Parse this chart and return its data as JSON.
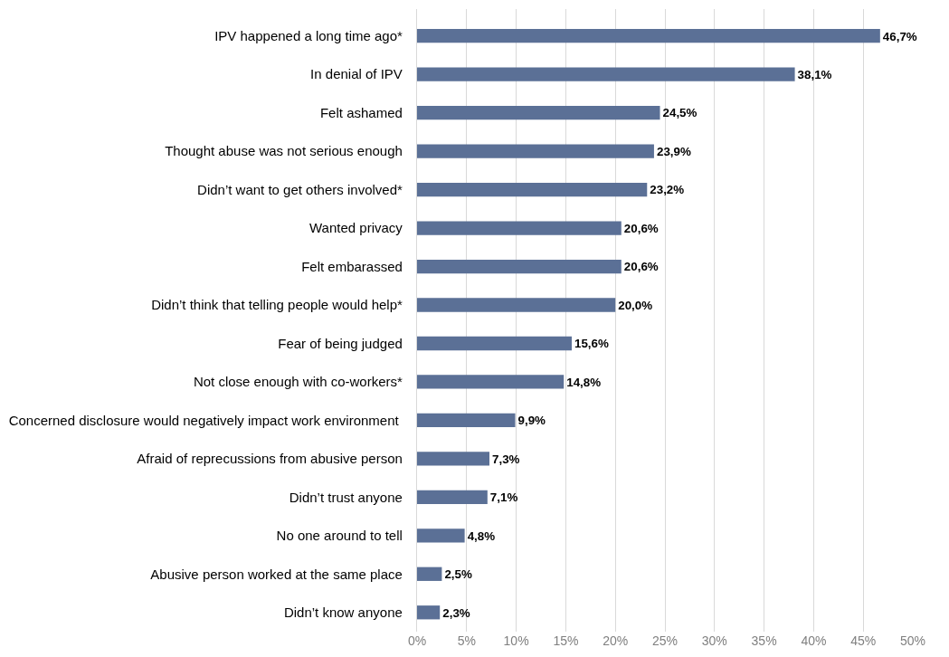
{
  "chart_data": {
    "type": "bar",
    "orientation": "horizontal",
    "categories": [
      "IPV happened a long time ago*",
      "In denial of IPV",
      "Felt ashamed",
      "Thought abuse was not serious enough",
      "Didn’t want to get others involved*",
      "Wanted privacy",
      "Felt embarassed",
      "Didn’t think that telling people would help*",
      "Fear of being judged",
      "Not close enough with co-workers*",
      "Concerned disclosure would negatively impact work environment ",
      "Afraid of reprecussions from abusive person",
      "Didn’t trust anyone",
      "No one around to tell",
      "Abusive person worked at the same place",
      "Didn’t know anyone"
    ],
    "values": [
      46.7,
      38.1,
      24.5,
      23.9,
      23.2,
      20.6,
      20.6,
      20.0,
      15.6,
      14.8,
      9.9,
      7.3,
      7.1,
      4.8,
      2.5,
      2.3
    ],
    "value_labels": [
      "46,7%",
      "38,1%",
      "24,5%",
      "23,9%",
      "23,2%",
      "20,6%",
      "20,6%",
      "20,0%",
      "15,6%",
      "14,8%",
      "9,9%",
      "7,3%",
      "7,1%",
      "4,8%",
      "2,5%",
      "2,3%"
    ],
    "color": "#5b7096",
    "xlim": [
      0,
      50
    ],
    "xticks": [
      {
        "value": 0,
        "label": "0%"
      },
      {
        "value": 5,
        "label": "5%"
      },
      {
        "value": 10,
        "label": "10%"
      },
      {
        "value": 15,
        "label": "15%"
      },
      {
        "value": 20,
        "label": "20%"
      },
      {
        "value": 25,
        "label": "25%"
      },
      {
        "value": 30,
        "label": "30%"
      },
      {
        "value": 35,
        "label": "35%"
      },
      {
        "value": 40,
        "label": "40%"
      },
      {
        "value": 45,
        "label": "45%"
      },
      {
        "value": 50,
        "label": "50%"
      }
    ],
    "grid": "x",
    "legend": false
  }
}
